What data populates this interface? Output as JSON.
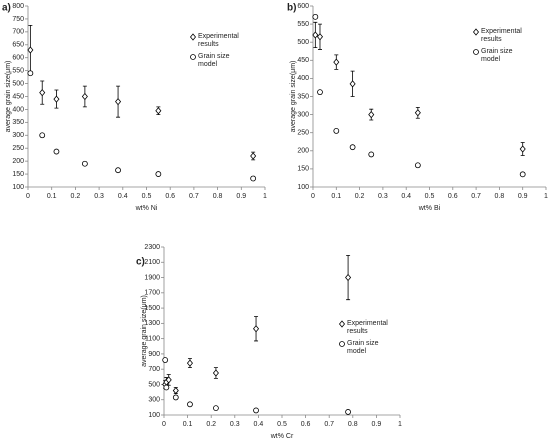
{
  "chart_data": [
    {
      "type": "scatter",
      "label": "a)",
      "x_label": "wt% Ni",
      "y_label": "average grain size(μm)",
      "xlim": [
        0,
        1
      ],
      "xticks": [
        0,
        0.1,
        0.2,
        0.3,
        0.4,
        0.5,
        0.6,
        0.7,
        0.8,
        0.9,
        1
      ],
      "ylim": [
        100,
        800
      ],
      "yticks": [
        100,
        150,
        200,
        250,
        300,
        350,
        400,
        450,
        500,
        550,
        600,
        650,
        700,
        750,
        800
      ],
      "series": [
        {
          "name": "Experimental results",
          "marker": "diamond",
          "color": "#000000",
          "x": [
            0.01,
            0.06,
            0.12,
            0.24,
            0.38,
            0.55,
            0.95
          ],
          "values": [
            630,
            465,
            440,
            450,
            430,
            395,
            220
          ],
          "errors": [
            95,
            45,
            35,
            40,
            60,
            15,
            15
          ]
        },
        {
          "name": "Grain size model",
          "marker": "circle",
          "color": "#000000",
          "x": [
            0.01,
            0.06,
            0.12,
            0.24,
            0.38,
            0.55,
            0.95
          ],
          "values": [
            540,
            300,
            237,
            190,
            165,
            150,
            133
          ]
        }
      ]
    },
    {
      "type": "scatter",
      "label": "b)",
      "x_label": "wt% Bi",
      "y_label": "average grain size(μm)",
      "xlim": [
        0,
        1
      ],
      "xticks": [
        0,
        0.1,
        0.2,
        0.3,
        0.4,
        0.5,
        0.6,
        0.7,
        0.8,
        0.9,
        1
      ],
      "ylim": [
        100,
        600
      ],
      "yticks": [
        100,
        150,
        200,
        250,
        300,
        350,
        400,
        450,
        500,
        550,
        600
      ],
      "series": [
        {
          "name": "Experimental results",
          "marker": "diamond",
          "color": "#000000",
          "x": [
            0.01,
            0.03,
            0.1,
            0.17,
            0.25,
            0.45,
            0.9
          ],
          "values": [
            520,
            515,
            445,
            385,
            300,
            305,
            205
          ],
          "errors": [
            35,
            35,
            20,
            35,
            15,
            15,
            18
          ]
        },
        {
          "name": "Grain size model",
          "marker": "circle",
          "color": "#000000",
          "x": [
            0.01,
            0.03,
            0.1,
            0.17,
            0.25,
            0.45,
            0.9
          ],
          "values": [
            570,
            362,
            255,
            210,
            190,
            160,
            135
          ]
        }
      ]
    },
    {
      "type": "scatter",
      "label": "c)",
      "x_label": "wt% Cr",
      "y_label": "average grain size(μm)",
      "xlim": [
        0,
        1
      ],
      "xticks": [
        0,
        0.1,
        0.2,
        0.3,
        0.4,
        0.5,
        0.6,
        0.7,
        0.8,
        0.9,
        1
      ],
      "ylim": [
        100,
        2300
      ],
      "yticks": [
        100,
        300,
        500,
        700,
        900,
        1100,
        1300,
        1500,
        1700,
        1900,
        2100,
        2300
      ],
      "series": [
        {
          "name": "Experimental results",
          "marker": "diamond",
          "color": "#000000",
          "x": [
            0.005,
            0.01,
            0.02,
            0.05,
            0.11,
            0.22,
            0.39,
            0.78
          ],
          "values": [
            500,
            530,
            560,
            420,
            780,
            650,
            1230,
            1900
          ],
          "errors": [
            50,
            60,
            70,
            40,
            60,
            70,
            160,
            290
          ]
        },
        {
          "name": "Grain size model",
          "marker": "circle",
          "color": "#000000",
          "x": [
            0.005,
            0.01,
            0.05,
            0.11,
            0.22,
            0.39,
            0.78
          ],
          "values": [
            820,
            460,
            330,
            240,
            190,
            160,
            140
          ]
        }
      ]
    }
  ]
}
